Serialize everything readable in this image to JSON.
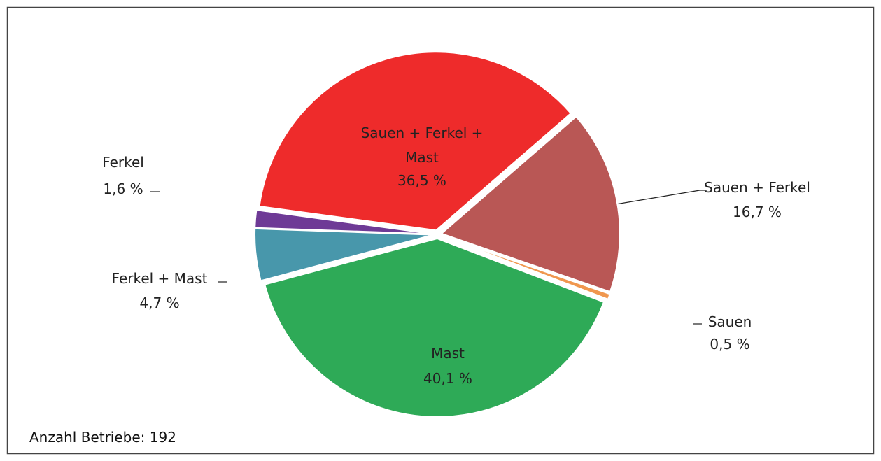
{
  "chart_data": {
    "type": "pie",
    "categories": [
      "Sauen + Ferkel",
      "Sauen",
      "Mast",
      "Ferkel + Mast",
      "Ferkel",
      "Sauen + Ferkel + Mast"
    ],
    "values": [
      16.7,
      0.5,
      40.1,
      4.7,
      1.6,
      36.5
    ],
    "value_labels": [
      "16,7 %",
      "0,5 %",
      "40,1 %",
      "4,7 %",
      "1,6 %",
      "36,5 %"
    ],
    "colors": [
      "#b95755",
      "#f0974f",
      "#2eaa57",
      "#4897ab",
      "#6e3a96",
      "#ee2b2b"
    ],
    "annotation": "Anzahl Betriebe: 192"
  }
}
